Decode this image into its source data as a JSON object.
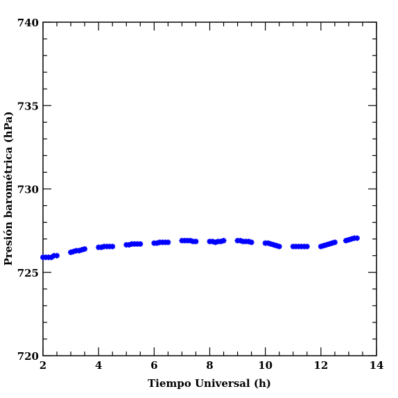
{
  "chart_data": {
    "type": "scatter",
    "title": "",
    "xlabel": "Tiempo Universal (h)",
    "ylabel": "Presión barométrica (hPa)",
    "xlim": [
      2,
      14
    ],
    "ylim": [
      720,
      740
    ],
    "xticks": [
      2,
      4,
      6,
      8,
      10,
      12,
      14
    ],
    "yticks": [
      720,
      725,
      730,
      735,
      740
    ],
    "grid": false,
    "legend": "none",
    "marker": "star",
    "series": [
      {
        "color": "#0000ff",
        "x": [
          2.0,
          2.1,
          2.2,
          2.3,
          2.4,
          2.5,
          3.0,
          3.1,
          3.2,
          3.3,
          3.4,
          3.5,
          4.0,
          4.1,
          4.2,
          4.3,
          4.4,
          4.5,
          5.0,
          5.1,
          5.2,
          5.3,
          5.4,
          5.5,
          6.0,
          6.1,
          6.2,
          6.3,
          6.4,
          6.5,
          7.0,
          7.1,
          7.2,
          7.3,
          7.4,
          7.5,
          8.0,
          8.1,
          8.2,
          8.3,
          8.4,
          8.5,
          9.0,
          9.1,
          9.2,
          9.3,
          9.4,
          9.5,
          10.0,
          10.1,
          10.2,
          10.3,
          10.4,
          10.5,
          11.0,
          11.1,
          11.2,
          11.3,
          11.4,
          11.5,
          12.0,
          12.1,
          12.2,
          12.3,
          12.4,
          12.5,
          12.9,
          13.0,
          13.1,
          13.2,
          13.3
        ],
        "y": [
          725.9,
          725.9,
          725.9,
          725.9,
          726.0,
          726.0,
          726.2,
          726.25,
          726.3,
          726.3,
          726.35,
          726.4,
          726.5,
          726.5,
          726.55,
          726.55,
          726.55,
          726.55,
          726.65,
          726.65,
          726.7,
          726.7,
          726.7,
          726.7,
          726.75,
          726.75,
          726.8,
          726.8,
          726.8,
          726.8,
          726.9,
          726.9,
          726.9,
          726.9,
          726.85,
          726.85,
          726.85,
          726.85,
          726.8,
          726.85,
          726.85,
          726.9,
          726.9,
          726.9,
          726.85,
          726.85,
          726.85,
          726.8,
          726.75,
          726.75,
          726.7,
          726.65,
          726.6,
          726.55,
          726.55,
          726.55,
          726.55,
          726.55,
          726.55,
          726.55,
          726.55,
          726.6,
          726.65,
          726.7,
          726.75,
          726.8,
          726.9,
          726.95,
          727.0,
          727.05,
          727.05
        ]
      }
    ]
  }
}
